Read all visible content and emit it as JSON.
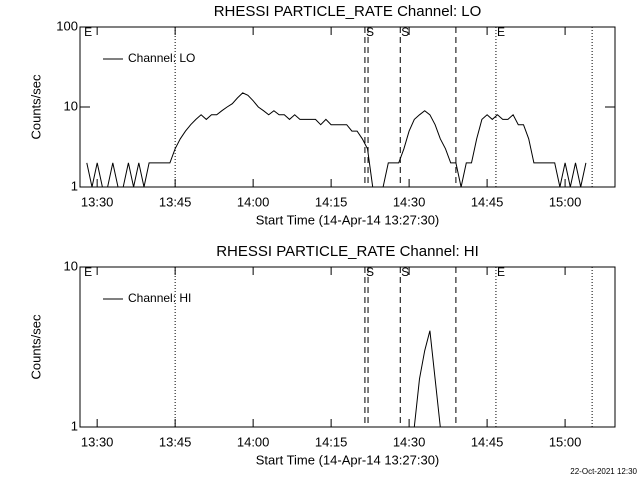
{
  "chart_data": [
    {
      "type": "line",
      "title": "RHESSI PARTICLE_RATE Channel: LO",
      "xlabel": "Start Time (14-Apr-14 13:27:30)",
      "ylabel": "Counts/sec",
      "x": [
        808,
        809,
        810,
        811,
        812,
        813,
        814,
        815,
        816,
        817,
        818,
        819,
        820,
        821,
        822,
        823,
        824,
        825,
        826,
        827,
        828,
        829,
        830,
        831,
        832,
        833,
        834,
        835,
        836,
        837,
        838,
        839,
        840,
        841,
        842,
        843,
        844,
        845,
        846,
        847,
        848,
        849,
        850,
        851,
        852,
        853,
        854,
        855,
        856,
        857,
        858,
        859,
        860,
        861,
        862,
        863,
        864,
        865,
        866,
        867,
        868,
        869,
        870,
        871,
        872,
        873,
        874,
        875,
        876,
        877,
        878,
        879,
        880,
        881,
        882,
        883,
        884,
        885,
        886,
        887,
        888,
        889,
        890,
        891,
        892,
        893,
        894,
        895,
        896,
        897,
        898,
        899,
        900,
        901,
        902,
        903,
        904
      ],
      "series": [
        {
          "name": "Channel: LO",
          "color": "#000000",
          "values": [
            2,
            1,
            2,
            1,
            1,
            2,
            1,
            1,
            2,
            1,
            2,
            1,
            2,
            2,
            2,
            2,
            2,
            3,
            4,
            5,
            6,
            7,
            8,
            7,
            8,
            8,
            9,
            10,
            11,
            13,
            15,
            14,
            12,
            10,
            9,
            8,
            9,
            8,
            8,
            7,
            8,
            7,
            7,
            7,
            7,
            6,
            7,
            6,
            6,
            6,
            6,
            5,
            5,
            4,
            3,
            1,
            1,
            1,
            2,
            2,
            2,
            3,
            5,
            7,
            8,
            9,
            8,
            6,
            4,
            3,
            2,
            2,
            1,
            2,
            2,
            4,
            7,
            8,
            7,
            8,
            7,
            7,
            8,
            6,
            6,
            4,
            2,
            2,
            2,
            2,
            2,
            1,
            2,
            1,
            2,
            1,
            2
          ]
        }
      ],
      "xlim": [
        806.7,
        909.6
      ],
      "xticks": [
        {
          "value": 810,
          "label": "13:30"
        },
        {
          "value": 825,
          "label": "13:45"
        },
        {
          "value": 840,
          "label": "14:00"
        },
        {
          "value": 855,
          "label": "14:15"
        },
        {
          "value": 870,
          "label": "14:30"
        },
        {
          "value": 885,
          "label": "14:45"
        },
        {
          "value": 900,
          "label": "15:00"
        }
      ],
      "ylim": [
        1,
        100
      ],
      "yticks": [
        1,
        10,
        100
      ],
      "log_y": true,
      "vlines": [
        {
          "x": 825,
          "style": "dotted"
        },
        {
          "x": 861.5,
          "style": "dashed"
        },
        {
          "x": 862.1,
          "style": "dashed"
        },
        {
          "x": 868.3,
          "style": "dashed"
        },
        {
          "x": 879,
          "style": "dashed"
        },
        {
          "x": 886.7,
          "style": "dotted"
        },
        {
          "x": 905.2,
          "style": "dotted"
        }
      ],
      "vlabels": [
        {
          "x": 807.5,
          "text": "E"
        },
        {
          "x": 861.7,
          "text": "S"
        },
        {
          "x": 868.5,
          "text": "S"
        },
        {
          "x": 886.9,
          "text": "E"
        }
      ]
    },
    {
      "type": "line",
      "title": "RHESSI PARTICLE_RATE Channel: HI",
      "xlabel": "Start Time (14-Apr-14 13:27:30)",
      "ylabel": "Counts/sec",
      "x": [
        871,
        872,
        873,
        874,
        875,
        876
      ],
      "series": [
        {
          "name": "Channel: HI",
          "color": "#000000",
          "values": [
            1,
            2,
            3,
            4,
            2,
            1
          ]
        }
      ],
      "xlim": [
        806.7,
        909.6
      ],
      "xticks": [
        {
          "value": 810,
          "label": "13:30"
        },
        {
          "value": 825,
          "label": "13:45"
        },
        {
          "value": 840,
          "label": "14:00"
        },
        {
          "value": 855,
          "label": "14:15"
        },
        {
          "value": 870,
          "label": "14:30"
        },
        {
          "value": 885,
          "label": "14:45"
        },
        {
          "value": 900,
          "label": "15:00"
        }
      ],
      "ylim": [
        1,
        10
      ],
      "yticks": [
        1,
        10
      ],
      "log_y": true,
      "vlines": [
        {
          "x": 825,
          "style": "dotted"
        },
        {
          "x": 861.5,
          "style": "dashed"
        },
        {
          "x": 862.1,
          "style": "dashed"
        },
        {
          "x": 868.3,
          "style": "dashed"
        },
        {
          "x": 879,
          "style": "dashed"
        },
        {
          "x": 886.7,
          "style": "dotted"
        },
        {
          "x": 905.2,
          "style": "dotted"
        }
      ],
      "vlabels": [
        {
          "x": 807.5,
          "text": "E"
        },
        {
          "x": 861.7,
          "text": "S"
        },
        {
          "x": 868.5,
          "text": "S"
        },
        {
          "x": 886.9,
          "text": "E"
        }
      ]
    }
  ],
  "footer": "22-Oct-2021 12:30"
}
